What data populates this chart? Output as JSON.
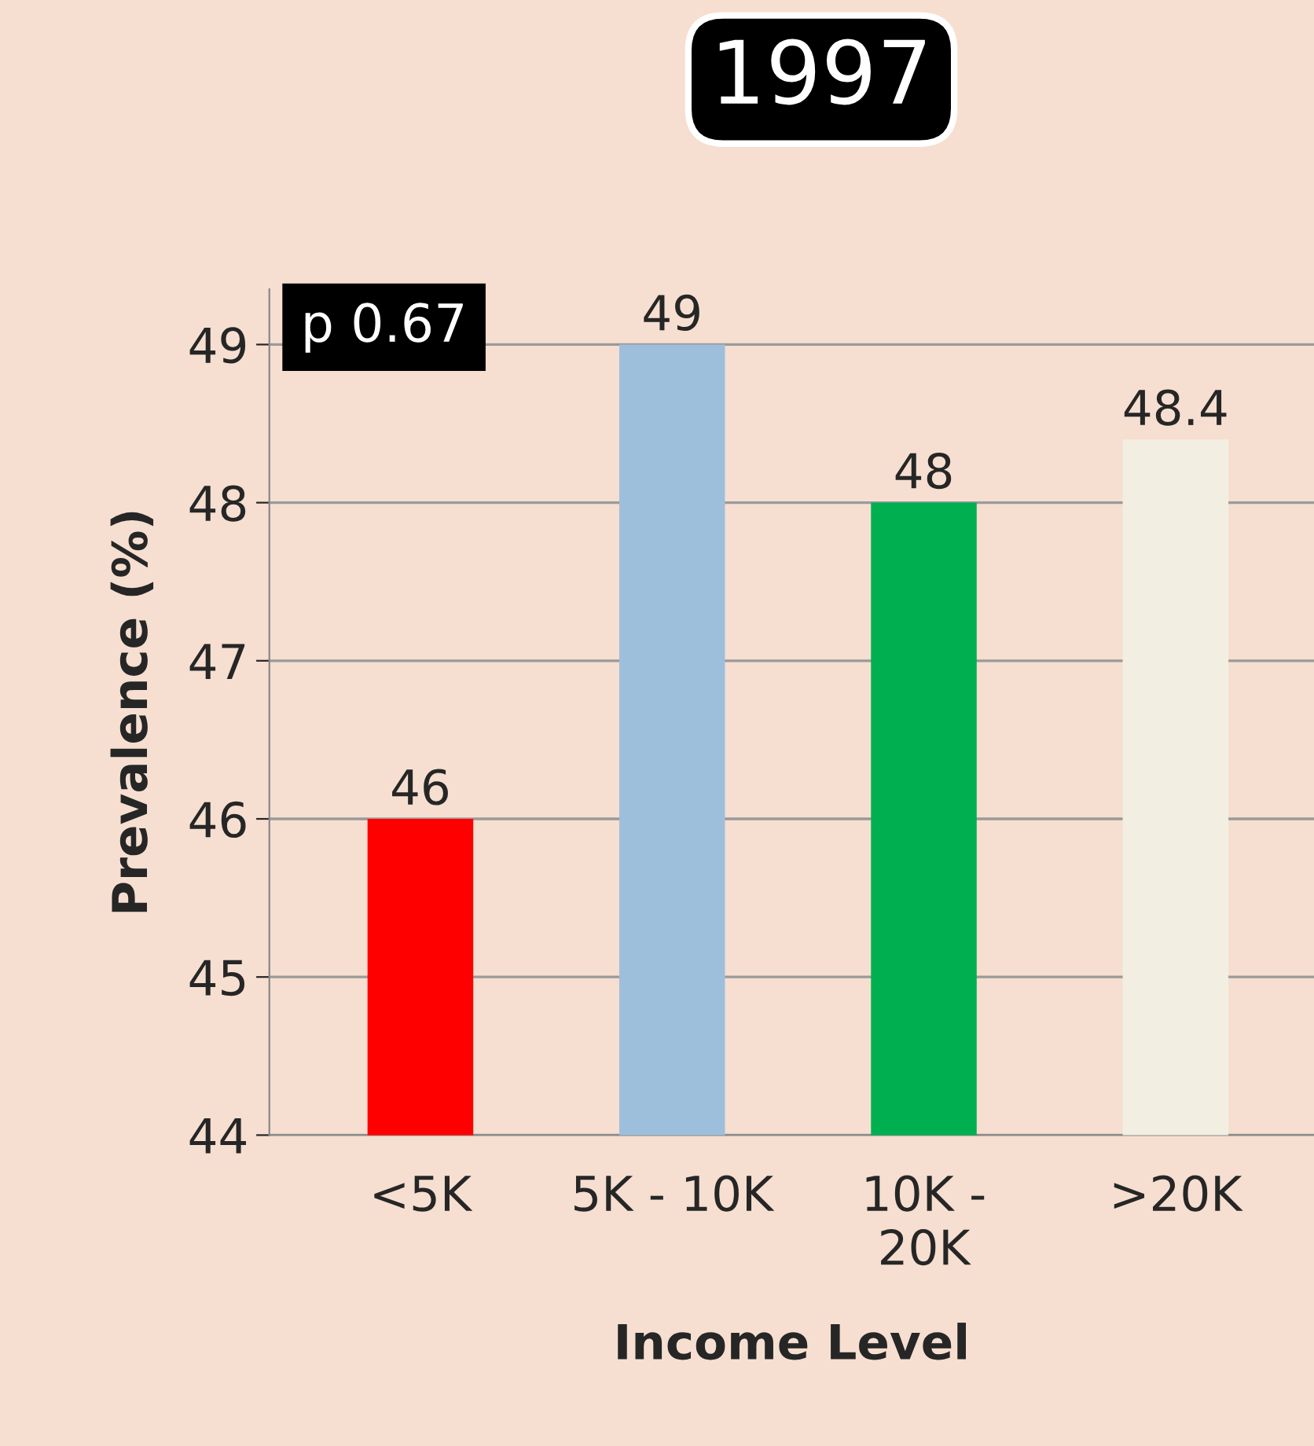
{
  "chart_data": {
    "type": "bar",
    "title": "1997",
    "xlabel": "Income Level",
    "ylabel": "Prevalence (%)",
    "categories": [
      "<5K",
      "5K - 10K",
      "10K -\n20K",
      ">20K"
    ],
    "values": [
      46,
      49,
      48,
      48.4
    ],
    "colors": [
      "#ff0000",
      "#9dbfdc",
      "#00b050",
      "#f2efe2"
    ],
    "ylim": [
      44,
      49.35
    ],
    "yticks": [
      44,
      45,
      46,
      47,
      48,
      49
    ],
    "grid": "y",
    "data_labels": true,
    "annotations": [
      "p 0.67"
    ]
  }
}
